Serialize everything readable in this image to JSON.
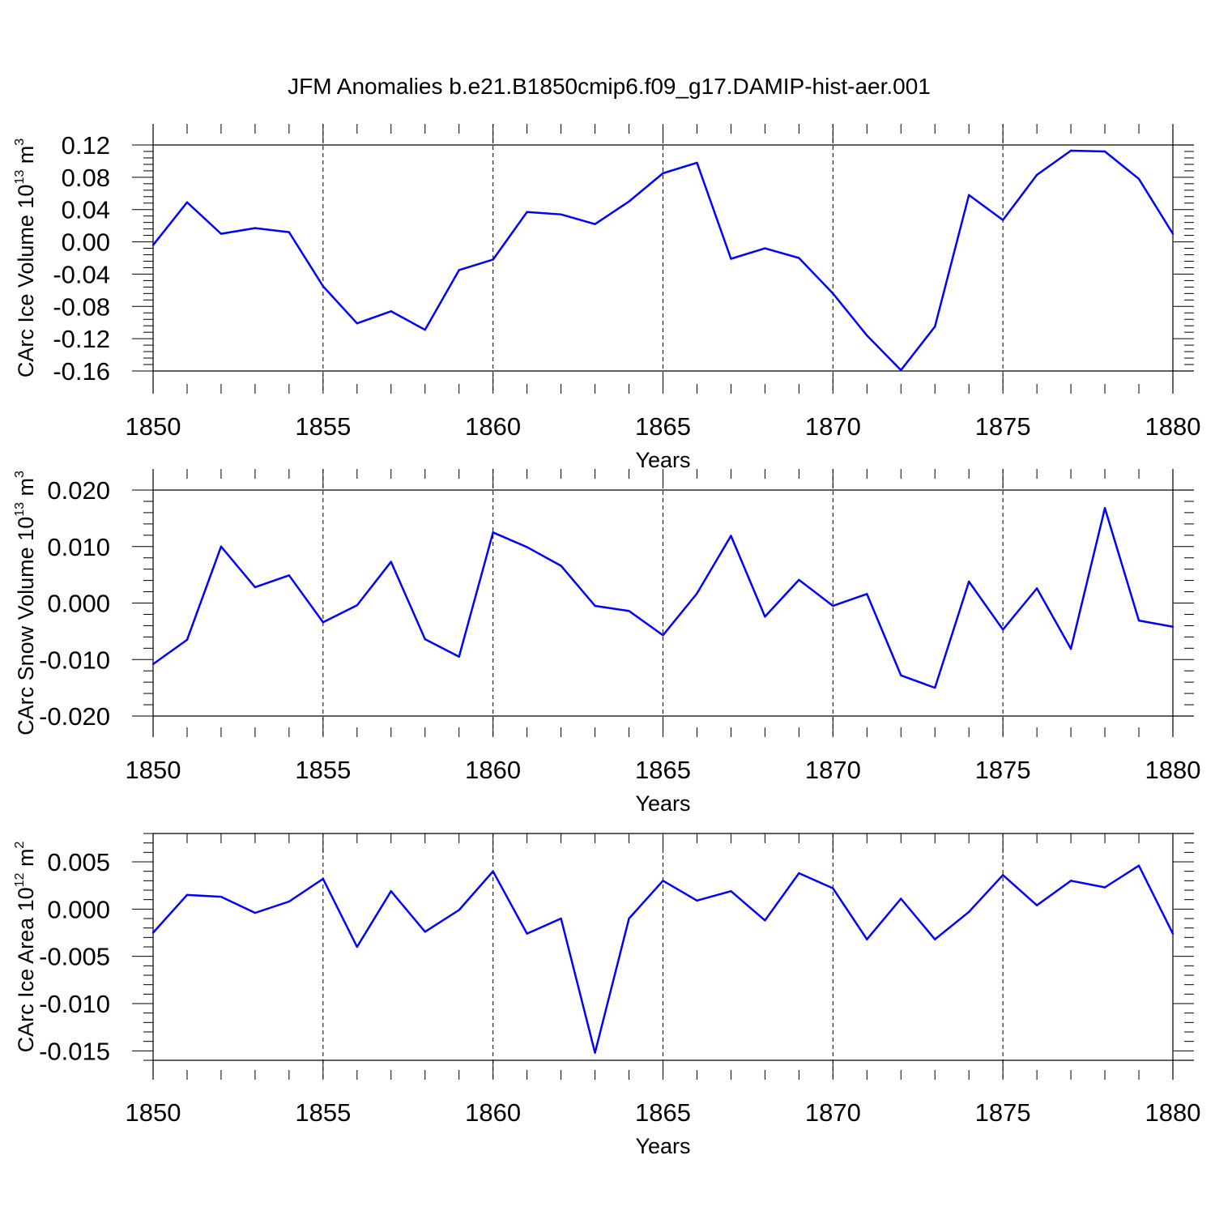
{
  "title": "JFM Anomalies b.e21.B1850cmip6.f09_g17.DAMIP-hist-aer.001",
  "colors": {
    "series": "#0000ff",
    "axis": "#000000",
    "grid": "#000000"
  },
  "chart_data": [
    {
      "type": "line",
      "xlabel": "Years",
      "ylabel": {
        "base": "CArc Ice Volume 10",
        "exponent": "13",
        "unit": " m",
        "unit_exponent": "3"
      },
      "xlim": [
        1850,
        1880
      ],
      "ylim": [
        -0.16,
        0.12
      ],
      "x_ticks": [
        "1850",
        "1855",
        "1860",
        "1865",
        "1870",
        "1875",
        "1880"
      ],
      "y_ticks": [
        "0.12",
        "0.08",
        "0.04",
        "0.00",
        "-0.04",
        "-0.08",
        "-0.12",
        "-0.16"
      ],
      "grid": "vertical dashed at major x ticks",
      "series": [
        {
          "x": [
            1850,
            1851,
            1852,
            1853,
            1854,
            1855,
            1856,
            1857,
            1858,
            1859,
            1860,
            1861,
            1862,
            1863,
            1864,
            1865,
            1866,
            1867,
            1868,
            1869,
            1870,
            1871,
            1872,
            1873,
            1874,
            1875,
            1876,
            1877,
            1878,
            1879,
            1880
          ],
          "values": [
            -0.004,
            0.049,
            0.01,
            0.017,
            0.012,
            -0.055,
            -0.101,
            -0.086,
            -0.109,
            -0.035,
            -0.022,
            0.037,
            0.034,
            0.022,
            0.05,
            0.085,
            0.098,
            -0.021,
            -0.008,
            -0.02,
            -0.064,
            -0.116,
            -0.159,
            -0.105,
            0.058,
            0.027,
            0.083,
            0.113,
            0.112,
            0.078,
            0.01
          ]
        }
      ]
    },
    {
      "type": "line",
      "xlabel": "Years",
      "ylabel": {
        "base": "CArc Snow Volume 10",
        "exponent": "13",
        "unit": " m",
        "unit_exponent": "3"
      },
      "xlim": [
        1850,
        1880
      ],
      "ylim": [
        -0.02,
        0.02
      ],
      "x_ticks": [
        "1850",
        "1855",
        "1860",
        "1865",
        "1870",
        "1875",
        "1880"
      ],
      "y_ticks": [
        "0.020",
        "0.010",
        "0.000",
        "-0.010",
        "-0.020"
      ],
      "grid": "vertical dashed at major x ticks",
      "series": [
        {
          "x": [
            1850,
            1851,
            1852,
            1853,
            1854,
            1855,
            1856,
            1857,
            1858,
            1859,
            1860,
            1861,
            1862,
            1863,
            1864,
            1865,
            1866,
            1867,
            1868,
            1869,
            1870,
            1871,
            1872,
            1873,
            1874,
            1875,
            1876,
            1877,
            1878,
            1879,
            1880
          ],
          "values": [
            -0.0108,
            -0.0065,
            0.01,
            0.0028,
            0.0049,
            -0.0034,
            -0.0004,
            0.0073,
            -0.0064,
            -0.0095,
            0.0125,
            0.0099,
            0.0066,
            -0.0005,
            -0.0014,
            -0.0057,
            0.0017,
            0.0119,
            -0.0024,
            0.0041,
            -0.0005,
            0.0016,
            -0.0128,
            -0.015,
            0.0038,
            -0.0047,
            0.0026,
            -0.0081,
            0.0168,
            -0.0031,
            -0.0042
          ]
        }
      ]
    },
    {
      "type": "line",
      "xlabel": "Years",
      "ylabel": {
        "base": "CArc Ice Area 10",
        "exponent": "12",
        "unit": " m",
        "unit_exponent": "2"
      },
      "xlim": [
        1850,
        1880
      ],
      "ylim": [
        -0.016,
        0.008
      ],
      "x_ticks": [
        "1850",
        "1855",
        "1860",
        "1865",
        "1870",
        "1875",
        "1880"
      ],
      "y_ticks": [
        "0.005",
        "0.000",
        "-0.005",
        "-0.010",
        "-0.015"
      ],
      "grid": "vertical dashed at major x ticks",
      "series": [
        {
          "x": [
            1850,
            1851,
            1852,
            1853,
            1854,
            1855,
            1856,
            1857,
            1858,
            1859,
            1860,
            1861,
            1862,
            1863,
            1864,
            1865,
            1866,
            1867,
            1868,
            1869,
            1870,
            1871,
            1872,
            1873,
            1874,
            1875,
            1876,
            1877,
            1878,
            1879,
            1880
          ],
          "values": [
            -0.0025,
            0.0015,
            0.0013,
            -0.0004,
            0.0008,
            0.0032,
            -0.004,
            0.0019,
            -0.0024,
            -0.0001,
            0.004,
            -0.0026,
            -0.001,
            -0.0152,
            -0.001,
            0.003,
            0.0009,
            0.0019,
            -0.0012,
            0.0038,
            0.0022,
            -0.0032,
            0.0011,
            -0.0032,
            -0.0003,
            0.0036,
            0.0004,
            0.003,
            0.0023,
            0.0046,
            -0.0026
          ]
        }
      ]
    }
  ]
}
